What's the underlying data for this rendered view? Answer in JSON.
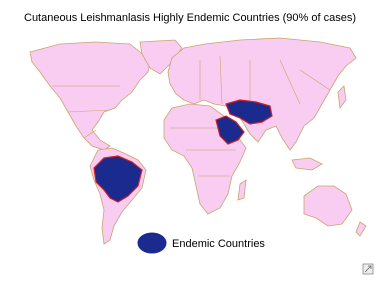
{
  "title": "Cutaneous Leishmanlasis Highly Endemic Countries (90% of cases)",
  "legend": {
    "label": "Endemic Countries"
  }
}
